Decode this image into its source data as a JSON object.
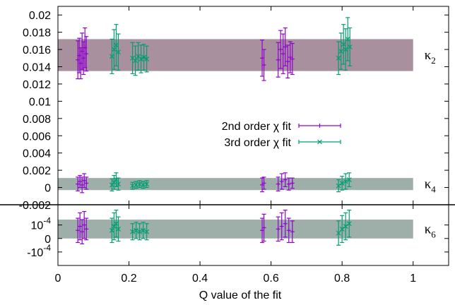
{
  "colors": {
    "series1": "#9400d3",
    "series2": "#009e73",
    "band_k2": "#a8909e",
    "band_k4": "#9eaea8",
    "band_k6": "#9eaea8",
    "axis": "#000000"
  },
  "chart_data": [
    {
      "type": "scatter",
      "panel": "top",
      "error_bars": true,
      "xlim": [
        0,
        1.1
      ],
      "ylim": [
        -0.002,
        0.021
      ],
      "y_ticks": [
        "0.02",
        "0.018",
        "0.016",
        "0.014",
        "0.012",
        "0.01",
        "0.008",
        "0.006",
        "0.004",
        "0.002",
        "0",
        "-0.002"
      ],
      "y_tick_values": [
        0.02,
        0.018,
        0.016,
        0.014,
        0.012,
        0.01,
        0.008,
        0.006,
        0.004,
        0.002,
        0,
        -0.002
      ],
      "bands": [
        {
          "label": "κ",
          "label_sub": "2",
          "y_low": 0.0135,
          "y_high": 0.0172
        },
        {
          "label": "κ",
          "label_sub": "4",
          "y_low": -0.0003,
          "y_high": 0.0011
        }
      ],
      "legend": {
        "position": "center",
        "entries": [
          "2nd order χ fit",
          "3rd order χ fit"
        ]
      },
      "series": [
        {
          "name": "2nd order χ fit",
          "marker": "+",
          "points": [
            {
              "x": 0.056,
              "y": 0.0148,
              "err": 0.0022
            },
            {
              "x": 0.06,
              "y": 0.0153,
              "err": 0.002
            },
            {
              "x": 0.064,
              "y": 0.0144,
              "err": 0.0018
            },
            {
              "x": 0.068,
              "y": 0.0158,
              "err": 0.0021
            },
            {
              "x": 0.072,
              "y": 0.015,
              "err": 0.0019
            },
            {
              "x": 0.076,
              "y": 0.0162,
              "err": 0.0023
            },
            {
              "x": 0.08,
              "y": 0.0155,
              "err": 0.002
            },
            {
              "x": 0.575,
              "y": 0.015,
              "err": 0.0021
            },
            {
              "x": 0.58,
              "y": 0.0142,
              "err": 0.0018
            },
            {
              "x": 0.62,
              "y": 0.0148,
              "err": 0.002
            },
            {
              "x": 0.627,
              "y": 0.016,
              "err": 0.0022
            },
            {
              "x": 0.634,
              "y": 0.0155,
              "err": 0.0023
            },
            {
              "x": 0.64,
              "y": 0.0163,
              "err": 0.0022
            },
            {
              "x": 0.647,
              "y": 0.0146,
              "err": 0.0019
            },
            {
              "x": 0.654,
              "y": 0.0151,
              "err": 0.0018
            },
            {
              "x": 0.66,
              "y": 0.0149,
              "err": 0.0018
            },
            {
              "x": 0.056,
              "y": 0.0004,
              "err": 0.0008
            },
            {
              "x": 0.062,
              "y": 0.0007,
              "err": 0.0007
            },
            {
              "x": 0.068,
              "y": 0.0003,
              "err": 0.0009
            },
            {
              "x": 0.074,
              "y": 0.0008,
              "err": 0.0008
            },
            {
              "x": 0.08,
              "y": 0.0005,
              "err": 0.0007
            },
            {
              "x": 0.575,
              "y": 0.0003,
              "err": 0.0008
            },
            {
              "x": 0.58,
              "y": 0.0005,
              "err": 0.0007
            },
            {
              "x": 0.62,
              "y": 0.0004,
              "err": 0.0008
            },
            {
              "x": 0.63,
              "y": 0.0007,
              "err": 0.0009
            },
            {
              "x": 0.64,
              "y": 0.0009,
              "err": 0.0008
            },
            {
              "x": 0.65,
              "y": 0.0004,
              "err": 0.0007
            },
            {
              "x": 0.66,
              "y": 0.0005,
              "err": 0.0006
            }
          ]
        },
        {
          "name": "3rd order χ fit",
          "marker": "x",
          "points": [
            {
              "x": 0.152,
              "y": 0.0152,
              "err": 0.002
            },
            {
              "x": 0.158,
              "y": 0.016,
              "err": 0.0023
            },
            {
              "x": 0.164,
              "y": 0.0165,
              "err": 0.0024
            },
            {
              "x": 0.17,
              "y": 0.0157,
              "err": 0.0021
            },
            {
              "x": 0.21,
              "y": 0.015,
              "err": 0.0018
            },
            {
              "x": 0.218,
              "y": 0.0147,
              "err": 0.0017
            },
            {
              "x": 0.226,
              "y": 0.0152,
              "err": 0.0016
            },
            {
              "x": 0.234,
              "y": 0.0149,
              "err": 0.0016
            },
            {
              "x": 0.242,
              "y": 0.0151,
              "err": 0.0015
            },
            {
              "x": 0.25,
              "y": 0.0149,
              "err": 0.0015
            },
            {
              "x": 0.79,
              "y": 0.015,
              "err": 0.0019
            },
            {
              "x": 0.797,
              "y": 0.0158,
              "err": 0.0021
            },
            {
              "x": 0.804,
              "y": 0.0166,
              "err": 0.0023
            },
            {
              "x": 0.81,
              "y": 0.016,
              "err": 0.0024
            },
            {
              "x": 0.816,
              "y": 0.0172,
              "err": 0.0025
            },
            {
              "x": 0.822,
              "y": 0.0163,
              "err": 0.0022
            },
            {
              "x": 0.152,
              "y": 0.0003,
              "err": 0.0007
            },
            {
              "x": 0.158,
              "y": 0.0006,
              "err": 0.0008
            },
            {
              "x": 0.164,
              "y": 0.0009,
              "err": 0.0008
            },
            {
              "x": 0.17,
              "y": 0.0004,
              "err": 0.0007
            },
            {
              "x": 0.21,
              "y": 0.0002,
              "err": 0.0004
            },
            {
              "x": 0.22,
              "y": 0.0003,
              "err": 0.0004
            },
            {
              "x": 0.23,
              "y": 0.0004,
              "err": 0.0004
            },
            {
              "x": 0.24,
              "y": 0.0003,
              "err": 0.0004
            },
            {
              "x": 0.25,
              "y": 0.0004,
              "err": 0.0004
            },
            {
              "x": 0.79,
              "y": 0.0002,
              "err": 0.0007
            },
            {
              "x": 0.8,
              "y": 0.0005,
              "err": 0.0008
            },
            {
              "x": 0.81,
              "y": 0.0007,
              "err": 0.0009
            },
            {
              "x": 0.82,
              "y": 0.0009,
              "err": 0.0008
            }
          ]
        }
      ]
    },
    {
      "type": "scatter",
      "panel": "bottom",
      "error_bars": true,
      "xlim": [
        0,
        1.1
      ],
      "ylim": [
        -0.0002,
        0.00025
      ],
      "xlabel": "Q value of the fit",
      "x_ticks": [
        "0",
        "0.2",
        "0.4",
        "0.6",
        "0.8",
        "1"
      ],
      "x_tick_values": [
        0,
        0.2,
        0.4,
        0.6,
        0.8,
        1
      ],
      "y_ticks": [
        {
          "base": "10",
          "exp": "-4",
          "value": 0.0001
        },
        {
          "base": "0",
          "exp": "",
          "value": 0
        },
        {
          "base": "-10",
          "exp": "-4",
          "value": -0.0001
        }
      ],
      "bands": [
        {
          "label": "κ",
          "label_sub": "6",
          "y_low": 0.0,
          "y_high": 0.00014
        }
      ],
      "series": [
        {
          "name": "2nd order χ fit",
          "marker": "+",
          "points": [
            {
              "x": 0.056,
              "y": 6e-05,
              "err": 9e-05
            },
            {
              "x": 0.062,
              "y": 9e-05,
              "err": 0.0001
            },
            {
              "x": 0.068,
              "y": 5e-05,
              "err": 9e-05
            },
            {
              "x": 0.074,
              "y": 0.0001,
              "err": 0.0001
            },
            {
              "x": 0.08,
              "y": 7e-05,
              "err": 8e-05
            },
            {
              "x": 0.575,
              "y": 6e-05,
              "err": 9e-05
            },
            {
              "x": 0.58,
              "y": 8e-05,
              "err": 0.0001
            },
            {
              "x": 0.62,
              "y": 7e-05,
              "err": 9e-05
            },
            {
              "x": 0.63,
              "y": 9e-05,
              "err": 0.0001
            },
            {
              "x": 0.64,
              "y": 0.00011,
              "err": 0.0001
            },
            {
              "x": 0.65,
              "y": 6e-05,
              "err": 9e-05
            },
            {
              "x": 0.66,
              "y": 5e-05,
              "err": 8e-05
            }
          ]
        },
        {
          "name": "3rd order χ fit",
          "marker": "x",
          "points": [
            {
              "x": 0.152,
              "y": 6e-05,
              "err": 9e-05
            },
            {
              "x": 0.158,
              "y": 9e-05,
              "err": 0.0001
            },
            {
              "x": 0.164,
              "y": 0.00011,
              "err": 0.0001
            },
            {
              "x": 0.17,
              "y": 7e-05,
              "err": 9e-05
            },
            {
              "x": 0.21,
              "y": 5e-05,
              "err": 6e-05
            },
            {
              "x": 0.22,
              "y": 6e-05,
              "err": 6e-05
            },
            {
              "x": 0.23,
              "y": 5e-05,
              "err": 6e-05
            },
            {
              "x": 0.24,
              "y": 6e-05,
              "err": 6e-05
            },
            {
              "x": 0.25,
              "y": 5e-05,
              "err": 6e-05
            },
            {
              "x": 0.79,
              "y": 4e-05,
              "err": 9e-05
            },
            {
              "x": 0.8,
              "y": 7e-05,
              "err": 0.0001
            },
            {
              "x": 0.81,
              "y": 9e-05,
              "err": 0.0001
            },
            {
              "x": 0.82,
              "y": 0.00011,
              "err": 0.0001
            }
          ]
        }
      ]
    }
  ]
}
